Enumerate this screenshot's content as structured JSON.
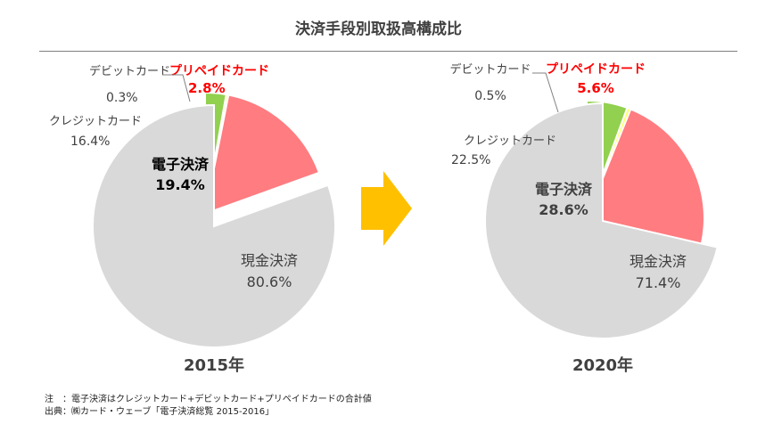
{
  "title": "決済手段別取扱高構成比",
  "colors": {
    "cash": "#d9d9d9",
    "credit": "#ff7c80",
    "debit": "#ffff66",
    "prepaid": "#92d050",
    "highlight": "#ff0000",
    "arrow": "#ffc000"
  },
  "chart_data": [
    {
      "type": "pie",
      "year_label": "2015年",
      "slices": [
        {
          "label": "プリペイドカード",
          "value": 2.8,
          "value_text": "2.8%",
          "color": "#92d050"
        },
        {
          "label": "デビットカード",
          "value": 0.3,
          "value_text": "0.3%",
          "color": "#ffff66"
        },
        {
          "label": "クレジットカード",
          "value": 16.4,
          "value_text": "16.4%",
          "color": "#ff7c80"
        },
        {
          "label": "現金決済",
          "value": 80.6,
          "value_text": "80.6%",
          "color": "#d9d9d9"
        }
      ],
      "group": {
        "label": "電子決済",
        "value": 19.4,
        "value_text": "19.4%"
      }
    },
    {
      "type": "pie",
      "year_label": "2020年",
      "slices": [
        {
          "label": "プリペイドカード",
          "value": 5.6,
          "value_text": "5.6%",
          "color": "#92d050"
        },
        {
          "label": "デビットカード",
          "value": 0.5,
          "value_text": "0.5%",
          "color": "#ffff66"
        },
        {
          "label": "クレジットカード",
          "value": 22.5,
          "value_text": "22.5%",
          "color": "#ff7c80"
        },
        {
          "label": "現金決済",
          "value": 71.4,
          "value_text": "71.4%",
          "color": "#d9d9d9"
        }
      ],
      "group": {
        "label": "電子決済",
        "value": 28.6,
        "value_text": "28.6%"
      }
    }
  ],
  "notes": [
    "注　：電子決済はクレジットカード+デビットカード+プリペイドカードの合計値",
    "出典：㈱カード・ウェーブ「電子決済総覧 2015-2016」"
  ]
}
